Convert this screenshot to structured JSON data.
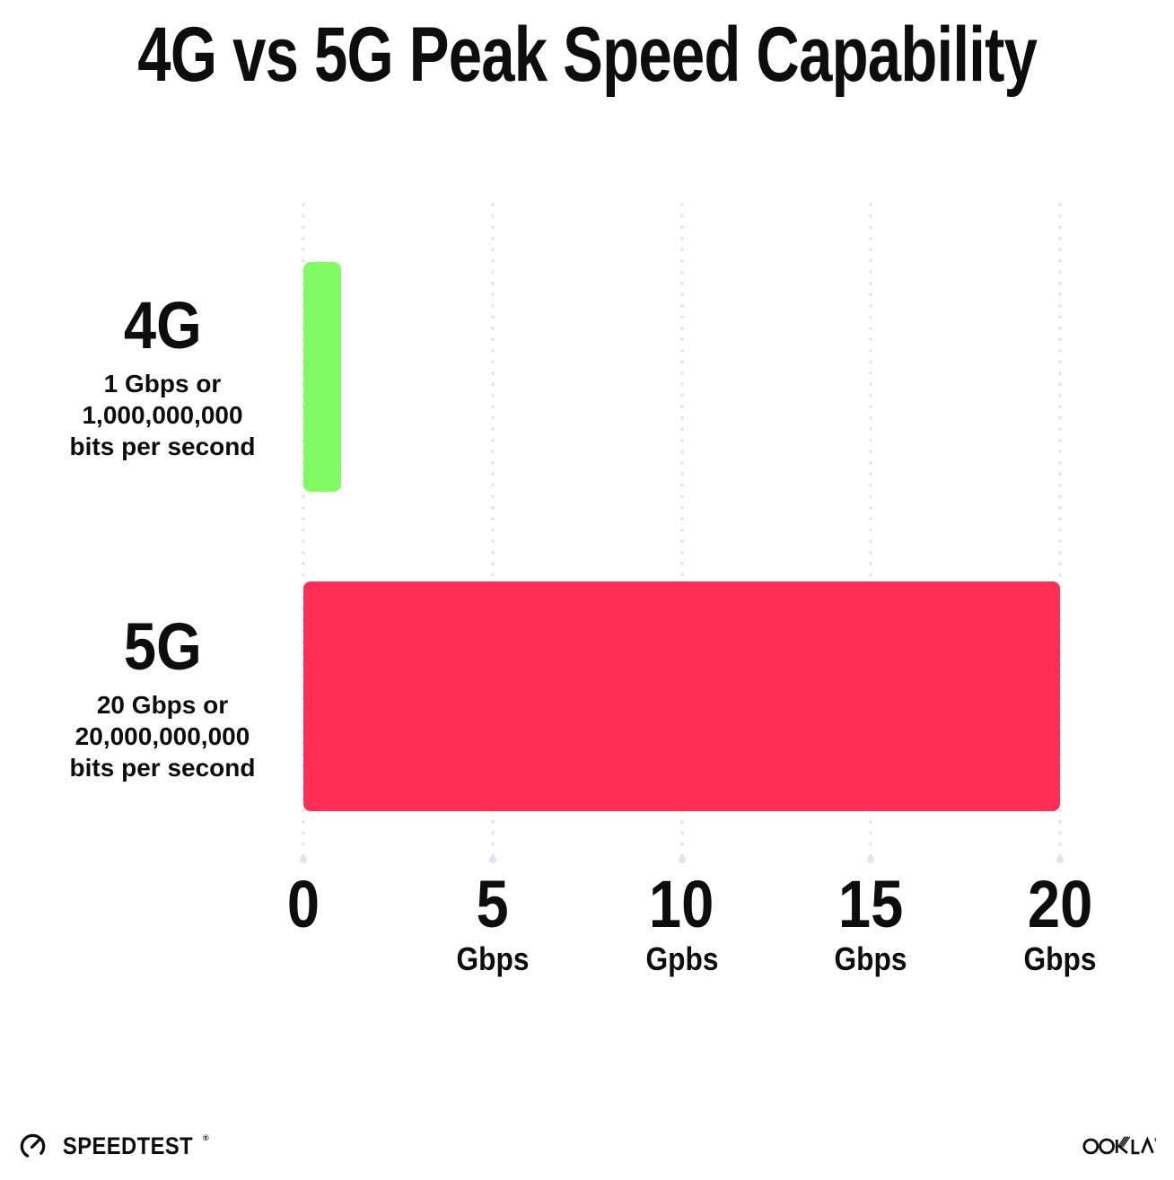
{
  "title": "4G vs 5G Peak Speed Capability",
  "chart_data": {
    "type": "bar",
    "orientation": "horizontal",
    "title": "4G vs 5G Peak Speed Capability",
    "categories": [
      "4G",
      "5G"
    ],
    "values": [
      1,
      20
    ],
    "unit": "Gbps",
    "xlim": [
      0,
      20
    ],
    "x_tick_values": [
      0,
      5,
      10,
      15,
      20
    ],
    "grid": "vertical-dotted",
    "legend": "none",
    "bars": [
      {
        "label": "4G",
        "value_gbps": 1,
        "description_lines": [
          "1 Gbps or",
          "1,000,000,000",
          "bits per second"
        ],
        "color": "#80FB63"
      },
      {
        "label": "5G",
        "value_gbps": 20,
        "description_lines": [
          "20 Gbps or",
          "20,000,000,000",
          "bits per second"
        ],
        "color": "#FF2E54"
      }
    ],
    "x_ticks": [
      {
        "value": "0",
        "unit": ""
      },
      {
        "value": "5",
        "unit": "Gbps"
      },
      {
        "value": "10",
        "unit": "Gpbs"
      },
      {
        "value": "15",
        "unit": "Gbps"
      },
      {
        "value": "20",
        "unit": "Gbps"
      }
    ]
  },
  "footer": {
    "speedtest_label": "SPEEDTEST",
    "speedtest_trademark": "®",
    "ookla_label": "OOKLA"
  },
  "colors": {
    "background": "#FFFFFF",
    "text": "#0D0D0D",
    "grid_dots": "#E2E3EE",
    "bar_4g": "#80FB63",
    "bar_5g": "#FF2E54"
  }
}
